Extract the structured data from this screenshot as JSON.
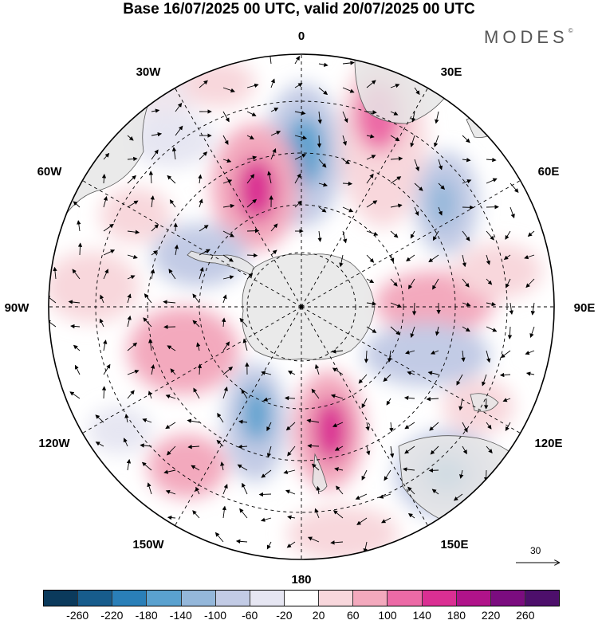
{
  "title": "Base 16/07/2025 00 UTC, valid 20/07/2025 00 UTC",
  "brand": "MODES",
  "brand_mark": "©",
  "map": {
    "projection": "south polar stereographic",
    "longitude_labels": {
      "top": "0",
      "top_right": "30E",
      "upper_right": "60E",
      "right": "90E",
      "lower_right": "120E",
      "bottom_right": "150E",
      "bottom": "180",
      "bottom_left": "150W",
      "lower_left": "120W",
      "left": "90W",
      "upper_left": "60W",
      "top_left": "30W"
    }
  },
  "reference_vector": {
    "label": "30"
  },
  "colorbar": {
    "colors": [
      "#0b3a5c",
      "#175c8c",
      "#2a7fb8",
      "#5aa1cf",
      "#94b7da",
      "#c2cbe5",
      "#e6e6f2",
      "#ffffff",
      "#f8d7dc",
      "#f3a9bd",
      "#ec6aa6",
      "#da2f93",
      "#b0138a",
      "#7b0c7f",
      "#4d0f6b"
    ],
    "tick_labels": [
      "-260",
      "-220",
      "-180",
      "-140",
      "-100",
      "-60",
      "-20",
      "20",
      "60",
      "100",
      "140",
      "180",
      "220",
      "260"
    ]
  },
  "colors": {
    "land": "#e6e6e6",
    "background": "#ffffff"
  }
}
